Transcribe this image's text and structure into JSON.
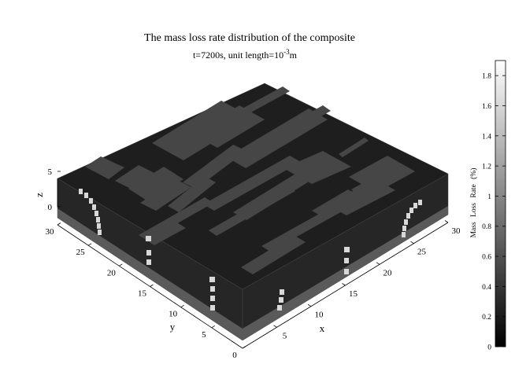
{
  "chart_data": {
    "type": "heatmap",
    "title": "The mass loss rate distribution of the composite",
    "subtitle_main": "t=7200s, unit length=10",
    "subtitle_exp": "-3",
    "subtitle_unit": "m",
    "xlabel": "x",
    "ylabel": "y",
    "zlabel": "z",
    "x_ticks": [
      5,
      10,
      15,
      20,
      25,
      30
    ],
    "y_ticks": [
      0,
      5,
      10,
      15,
      20,
      25,
      30
    ],
    "z_ticks": [
      0,
      5
    ],
    "xlim": [
      0,
      30
    ],
    "ylim": [
      0,
      30
    ],
    "zlim": [
      0,
      5
    ],
    "colorbar": {
      "label": "Mass Loss Rate (%)",
      "ticks": [
        "0",
        "0.2",
        "0.4",
        "0.6",
        "0.8",
        "1",
        "1.2",
        "1.4",
        "1.6",
        "1.8"
      ],
      "range": [
        0,
        1.9
      ],
      "colormap": "gray"
    }
  }
}
